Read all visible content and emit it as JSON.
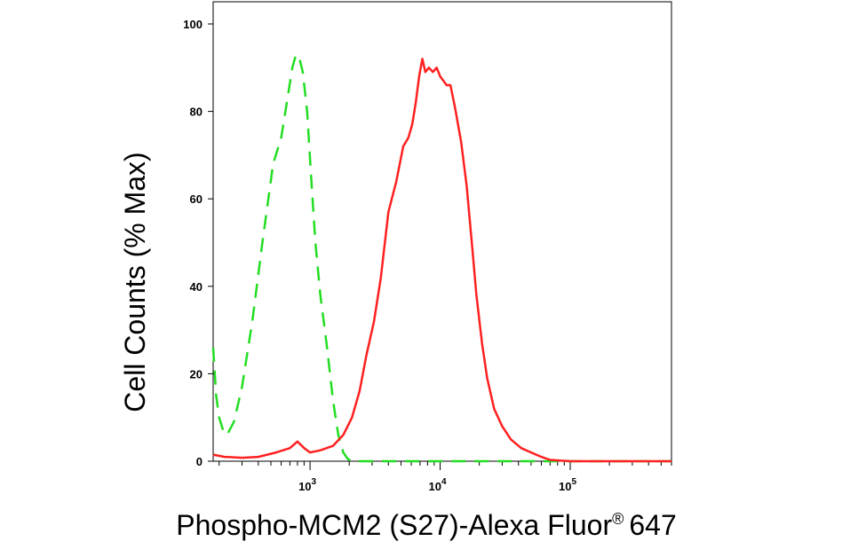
{
  "chart_data": {
    "type": "line",
    "title": "",
    "xlabel_main": "Phospho-MCM2 (S27)-Alexa Fluor",
    "xlabel_reg": "®",
    "xlabel_tail": "647",
    "ylabel": "Cell Counts (% Max)",
    "x_scale": "log",
    "xlim": [
      180,
      600000
    ],
    "ylim": [
      0,
      100
    ],
    "x_ticks": [
      {
        "value": 1000,
        "base": "10",
        "exp": "3"
      },
      {
        "value": 10000,
        "base": "10",
        "exp": "4"
      },
      {
        "value": 100000,
        "base": "10",
        "exp": "5"
      }
    ],
    "y_ticks": [
      0,
      20,
      40,
      60,
      80,
      100
    ],
    "grid": false,
    "legend": "none",
    "series": [
      {
        "color": "#22dd22",
        "style": "dashed",
        "x": [
          180,
          190,
          200,
          215,
          230,
          260,
          300,
          360,
          430,
          520,
          600,
          680,
          730,
          780,
          830,
          880,
          950,
          1020,
          1100,
          1200,
          1350,
          1500,
          1650,
          1800,
          1950,
          2100,
          2500,
          5000,
          10000,
          30000,
          100000,
          600000
        ],
        "y": [
          26,
          15,
          10,
          7,
          6,
          9,
          17,
          32,
          50,
          68,
          74,
          84,
          90,
          93,
          92,
          89,
          80,
          65,
          50,
          38,
          26,
          14,
          6,
          2,
          0.5,
          0,
          0,
          0,
          0,
          0,
          0,
          0
        ]
      },
      {
        "color": "#ff2020",
        "style": "solid",
        "x": [
          180,
          220,
          300,
          400,
          550,
          700,
          800,
          900,
          1000,
          1200,
          1500,
          1800,
          2100,
          2400,
          2700,
          3100,
          3500,
          4000,
          4600,
          5200,
          5700,
          6100,
          6500,
          6900,
          7300,
          7700,
          8200,
          8800,
          9400,
          10000,
          10600,
          11200,
          12000,
          13000,
          14500,
          16000,
          17500,
          19000,
          21000,
          23000,
          26000,
          30000,
          35000,
          42000,
          50000,
          60000,
          70000,
          100000,
          200000,
          600000
        ],
        "y": [
          1.5,
          1,
          0.8,
          1,
          2,
          3,
          4.5,
          3,
          2,
          2.5,
          3.5,
          6,
          10,
          16,
          24,
          32,
          42,
          57,
          64,
          72,
          74,
          77,
          82,
          88,
          92,
          89,
          90,
          89,
          90,
          88,
          87,
          86,
          86,
          81,
          73,
          63,
          50,
          38,
          27,
          19,
          12,
          8,
          5,
          3,
          2,
          1,
          0.3,
          0,
          0,
          0
        ]
      }
    ]
  }
}
